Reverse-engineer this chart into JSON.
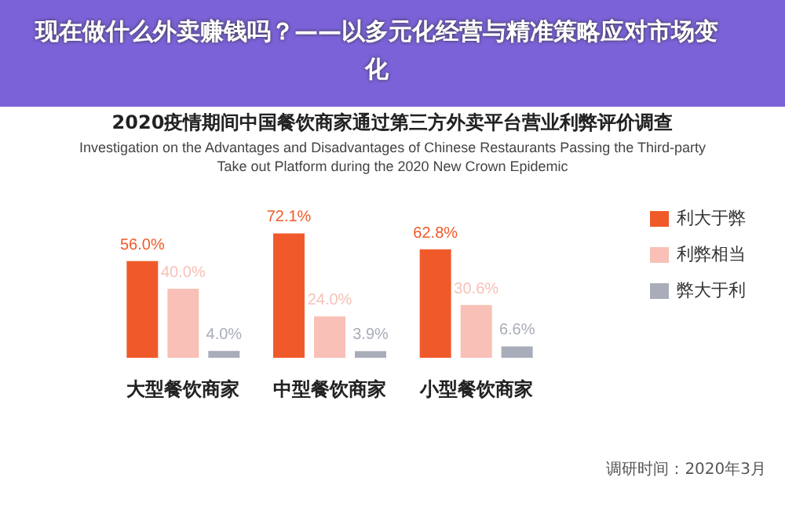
{
  "chart_data": {
    "type": "bar",
    "title": "2020疫情期间中国餐饮商家通过第三方外卖平台营业利弊评价调查",
    "subtitle": "Investigation on the Advantages and Disadvantages of Chinese Restaurants Passing the Third-party Take out Platform during the 2020 New Crown Epidemic",
    "annotations": [
      "现在做什么外卖赚钱吗？——以多元化经营与精准策略应对市场变化",
      "调研时间：2020年3月"
    ],
    "categories": [
      "大型餐饮商家",
      "中型餐饮商家",
      "小型餐饮商家"
    ],
    "series": [
      {
        "name": "利大于弊",
        "color": "#f05a2a",
        "values": [
          56.0,
          72.1,
          62.8
        ],
        "value_labels": [
          "56.0%",
          "72.1%",
          "62.8%"
        ]
      },
      {
        "name": "利弊相当",
        "color": "#f8c0b6",
        "values": [
          40.0,
          24.0,
          30.6
        ],
        "value_labels": [
          "40.0%",
          "24.0%",
          "30.6%"
        ]
      },
      {
        "name": "弊大于利",
        "color": "#a9adb9",
        "values": [
          4.0,
          3.9,
          6.6
        ],
        "value_labels": [
          "4.0%",
          "3.9%",
          "6.6%"
        ]
      }
    ],
    "legend": "right"
  }
}
